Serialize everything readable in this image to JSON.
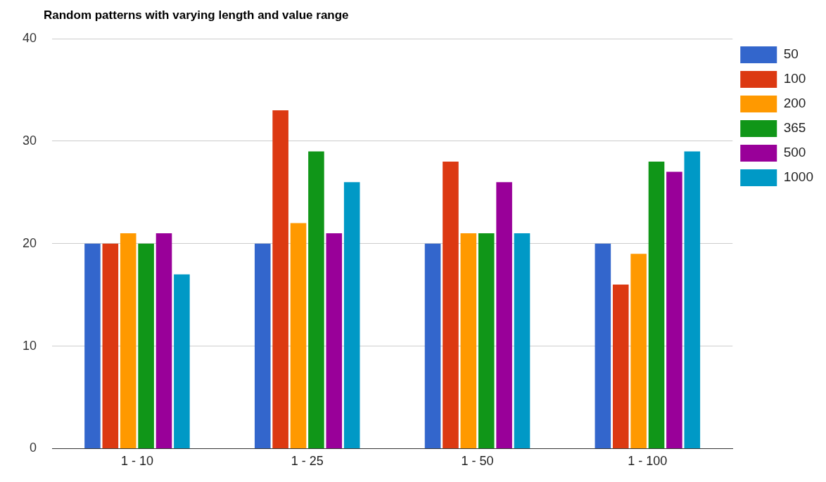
{
  "chart_data": {
    "type": "bar",
    "title": "Random patterns with varying length and value range",
    "categories": [
      "1 - 10",
      "1 - 25",
      "1 - 50",
      "1 - 100"
    ],
    "series": [
      {
        "name": "50",
        "color": "#3366cc",
        "values": [
          20,
          20,
          20,
          20
        ]
      },
      {
        "name": "100",
        "color": "#dc3912",
        "values": [
          20,
          33,
          28,
          16
        ]
      },
      {
        "name": "200",
        "color": "#ff9900",
        "values": [
          21,
          22,
          21,
          19
        ]
      },
      {
        "name": "365",
        "color": "#109618",
        "values": [
          20,
          29,
          21,
          28
        ]
      },
      {
        "name": "500",
        "color": "#990099",
        "values": [
          21,
          21,
          26,
          27
        ]
      },
      {
        "name": "1000",
        "color": "#0099c6",
        "values": [
          17,
          26,
          21,
          29
        ]
      }
    ],
    "ylim": [
      0,
      40
    ],
    "yticks": [
      0,
      10,
      20,
      30,
      40
    ],
    "grid": "y",
    "legend": "top right"
  }
}
